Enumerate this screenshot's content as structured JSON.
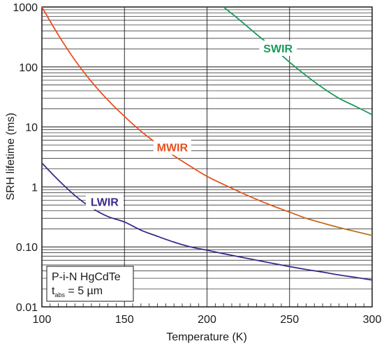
{
  "chart_data": {
    "type": "line",
    "xlabel": "Temperature (K)",
    "ylabel": "SRH lifetime (ms)",
    "xlim": [
      100,
      300
    ],
    "ylim": [
      0.01,
      1000
    ],
    "yscale": "log",
    "grid": true,
    "x_ticks": [
      100,
      150,
      200,
      250,
      300
    ],
    "x_tick_labels": [
      "100",
      "150",
      "200",
      "250",
      "300"
    ],
    "y_ticks": [
      0.01,
      0.1,
      1,
      10,
      100,
      1000
    ],
    "y_tick_labels": [
      "0.01",
      "0.10",
      "1",
      "10",
      "100",
      "1000"
    ],
    "series": [
      {
        "name": "SWIR",
        "color": "#1a9a5c",
        "x": [
          210,
          220,
          230,
          240,
          250,
          260,
          270,
          280,
          290,
          300
        ],
        "y": [
          1000,
          600,
          350,
          210,
          120,
          72,
          45,
          30,
          22,
          16
        ]
      },
      {
        "name": "MWIR",
        "color": "#e8501e",
        "color_end": "#b07a1a",
        "x": [
          100,
          110,
          120,
          130,
          140,
          150,
          160,
          170,
          180,
          190,
          200,
          210,
          220,
          230,
          240,
          250,
          260,
          270,
          280,
          290,
          300
        ],
        "y": [
          1000,
          340,
          130,
          57,
          28,
          15,
          8.5,
          5.2,
          3.3,
          2.2,
          1.5,
          1.1,
          0.82,
          0.62,
          0.48,
          0.38,
          0.3,
          0.25,
          0.21,
          0.18,
          0.155
        ]
      },
      {
        "name": "LWIR",
        "color": "#3a2a8a",
        "x": [
          100,
          110,
          120,
          130,
          140,
          150,
          160,
          170,
          180,
          190,
          200,
          210,
          220,
          230,
          240,
          250,
          260,
          270,
          280,
          290,
          300
        ],
        "y": [
          2.5,
          1.3,
          0.72,
          0.45,
          0.32,
          0.26,
          0.19,
          0.15,
          0.12,
          0.1,
          0.088,
          0.077,
          0.068,
          0.06,
          0.053,
          0.047,
          0.042,
          0.038,
          0.034,
          0.031,
          0.028
        ]
      }
    ],
    "series_labels": [
      {
        "text": "SWIR",
        "x": 243,
        "y": 200
      },
      {
        "text": "MWIR",
        "x": 179,
        "y": 4.5
      },
      {
        "text": "LWIR",
        "x": 138,
        "y": 0.55
      }
    ],
    "annotation": {
      "line1": "P-i-N HgCdTe",
      "line2_main": "t",
      "line2_sub": "abs",
      "line2_rest": " = 5 µm"
    }
  }
}
